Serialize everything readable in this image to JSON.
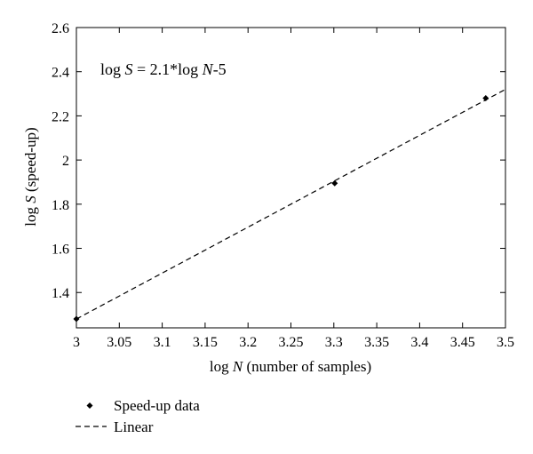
{
  "chart_data": {
    "type": "scatter",
    "title": "",
    "xlabel": {
      "prefix": "log ",
      "var": "N",
      "suffix": " (number of samples)"
    },
    "ylabel": {
      "prefix": "log ",
      "var": "S",
      "suffix": " (speed-up)"
    },
    "xlim": [
      3.0,
      3.5
    ],
    "ylim": [
      1.24,
      2.6
    ],
    "xticks": [
      3,
      3.05,
      3.1,
      3.15,
      3.2,
      3.25,
      3.3,
      3.35,
      3.4,
      3.45,
      3.5
    ],
    "xtick_labels": [
      "3",
      "3.05",
      "3.1",
      "3.15",
      "3.2",
      "3.25",
      "3.3",
      "3.35",
      "3.4",
      "3.45",
      "3.5"
    ],
    "yticks": [
      1.4,
      1.6,
      1.8,
      2.0,
      2.2,
      2.4,
      2.6
    ],
    "ytick_labels": [
      "1.4",
      "1.6",
      "1.8",
      "2",
      "2.2",
      "2.4",
      "2.6"
    ],
    "grid": false,
    "legend_position": "below",
    "annotation": {
      "t1": "log ",
      "v1": "S",
      "t2": " = 2.1*log ",
      "v2": "N",
      "t3": "-5"
    },
    "series": [
      {
        "name": "Speed-up data",
        "marker": "diamond",
        "x": [
          3.0,
          3.301,
          3.477
        ],
        "y": [
          1.28,
          1.895,
          2.28
        ]
      },
      {
        "name": "Linear",
        "style": "dashed",
        "x": [
          3.0,
          3.5
        ],
        "y": [
          1.28,
          2.32
        ]
      }
    ],
    "colors": {
      "marker": "#000000",
      "line": "#000000",
      "axes": "#000000"
    }
  }
}
